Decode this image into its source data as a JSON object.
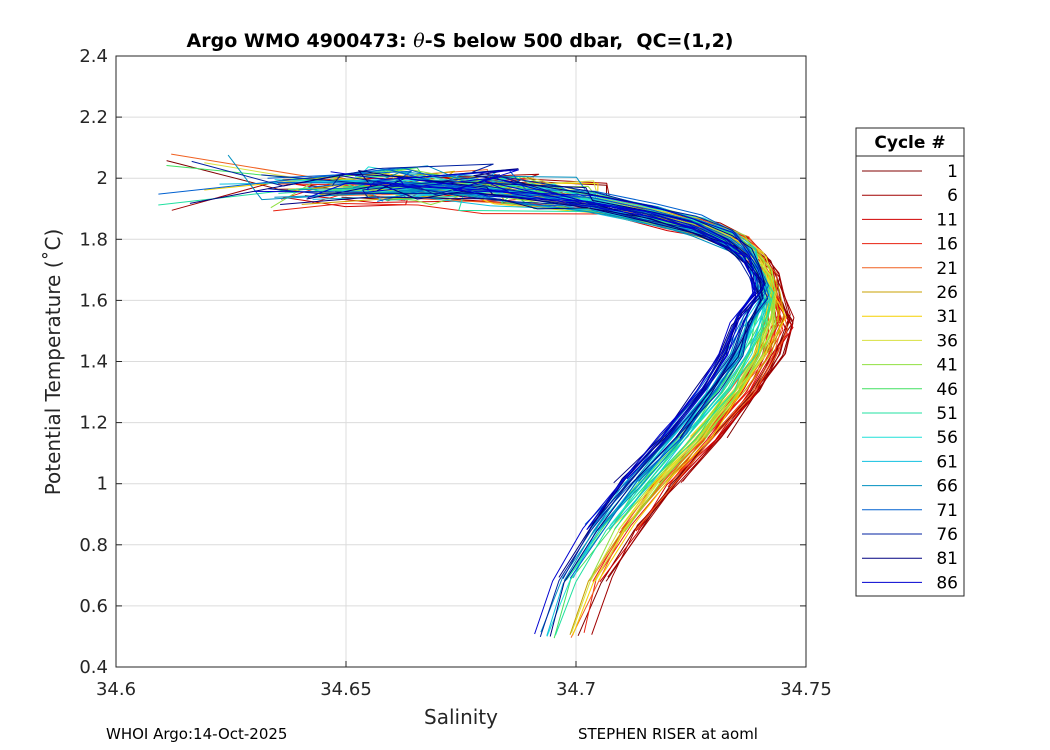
{
  "chart_data": {
    "type": "line",
    "title_prefix": "Argo WMO 4900473: ",
    "title_theta": "θ",
    "title_suffix": "-S below 500 dbar,  QC=(1,2)",
    "xlabel": "Salinity",
    "ylabel": "Potential Temperature (˚C)",
    "xlim": [
      34.6,
      34.75
    ],
    "ylim": [
      0.4,
      2.4
    ],
    "xticks": [
      34.6,
      34.65,
      34.7,
      34.75
    ],
    "xtick_labels": [
      "34.6",
      "34.65",
      "34.7",
      "34.75"
    ],
    "yticks": [
      0.4,
      0.6,
      0.8,
      1.0,
      1.2,
      1.4,
      1.6,
      1.8,
      2.0,
      2.2,
      2.4
    ],
    "ytick_labels": [
      "0.4",
      "0.6",
      "0.8",
      "1",
      "1.2",
      "1.4",
      "1.6",
      "1.8",
      "2",
      "2.2",
      "2.4"
    ],
    "grid": true,
    "legend_title": "Cycle #",
    "legend_position": "right",
    "legend_entries": [
      {
        "label": "1",
        "color": "#800000"
      },
      {
        "label": "6",
        "color": "#a00000"
      },
      {
        "label": "11",
        "color": "#d10000"
      },
      {
        "label": "16",
        "color": "#e8200f"
      },
      {
        "label": "21",
        "color": "#f06020"
      },
      {
        "label": "26",
        "color": "#c8a000"
      },
      {
        "label": "31",
        "color": "#f5d000"
      },
      {
        "label": "36",
        "color": "#d8e040"
      },
      {
        "label": "41",
        "color": "#90e040"
      },
      {
        "label": "46",
        "color": "#40e060"
      },
      {
        "label": "51",
        "color": "#20e0a0"
      },
      {
        "label": "56",
        "color": "#20e0d8"
      },
      {
        "label": "61",
        "color": "#10c0e0"
      },
      {
        "label": "66",
        "color": "#0090c0"
      },
      {
        "label": "71",
        "color": "#0060d0"
      },
      {
        "label": "76",
        "color": "#0020a0"
      },
      {
        "label": "81",
        "color": "#000080"
      },
      {
        "label": "86",
        "color": "#0000d0"
      }
    ],
    "base_profile": {
      "salinity": [
        34.648,
        34.66,
        34.675,
        34.69,
        34.705,
        34.718,
        34.728,
        34.735,
        34.739,
        34.741,
        34.742,
        34.741,
        34.738,
        34.733,
        34.725,
        34.716,
        34.708,
        34.701,
        34.697
      ],
      "theta": [
        1.95,
        1.96,
        1.96,
        1.94,
        1.9,
        1.86,
        1.82,
        1.77,
        1.72,
        1.66,
        1.6,
        1.52,
        1.42,
        1.3,
        1.15,
        1.0,
        0.85,
        0.68,
        0.5
      ]
    },
    "footer_left": "WHOI Argo:14-Oct-2025",
    "footer_right": "STEPHEN RISER at aoml"
  }
}
